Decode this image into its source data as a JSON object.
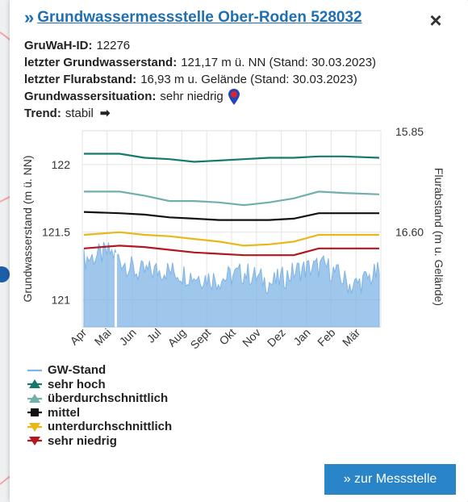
{
  "popup": {
    "title_prefix": "»",
    "title": "Grundwassermessstelle Ober-Roden 528032",
    "close_label": "×",
    "info": [
      {
        "label": "GruWaH-ID:",
        "value": "12276"
      },
      {
        "label": "letzter Grundwasserstand:",
        "value": "121,17 m ü. NN (Stand: 30.03.2023)"
      },
      {
        "label": "letzter Flurabstand:",
        "value": "16,93 m u. Gelände (Stand: 30.03.2023)"
      },
      {
        "label": "Grundwassersituation:",
        "value": "sehr niedrig"
      },
      {
        "label": "Trend:",
        "value": "stabil"
      }
    ],
    "trend_arrow": "➡",
    "button_label": "» zur Messstelle"
  },
  "icons": {
    "situation": "location-pin-icon",
    "trend": "arrow-right-icon",
    "close": "close-icon"
  },
  "colors": {
    "gw_stand": "#7fb4e6",
    "sehr_hoch": "#157a6e",
    "ueberdurchschnittlich": "#6fb0ad",
    "mittel": "#111111",
    "unterdurchschnittlich": "#e8b81a",
    "sehr_niedrig": "#b3171f",
    "link": "#1f6fb2",
    "button": "#2a85c8"
  },
  "chart_data": {
    "type": "area",
    "ylabel": "Grundwasserstand (m ü. NN)",
    "ylabel_right": "Flurabstand (m u. Gelände)",
    "y_ticks": [
      "122",
      "121.5",
      "121"
    ],
    "y_ticks_right": [
      "15.85",
      "16.60"
    ],
    "ylim": [
      120.8,
      122.25
    ],
    "categories": [
      "Apr",
      "Mai",
      "Jun",
      "Jul",
      "Aug",
      "Sept",
      "Okt",
      "Nov",
      "Dez",
      "Jan",
      "Feb",
      "Mär"
    ],
    "grid": true,
    "series": [
      {
        "name": "sehr hoch",
        "values": [
          122.08,
          122.08,
          122.05,
          122.04,
          122.02,
          122.03,
          122.04,
          122.05,
          122.05,
          122.06,
          122.06,
          122.05
        ]
      },
      {
        "name": "überdurchschnittlich",
        "values": [
          121.8,
          121.8,
          121.77,
          121.73,
          121.73,
          121.72,
          121.7,
          121.72,
          121.75,
          121.8,
          121.79,
          121.78
        ]
      },
      {
        "name": "mittel",
        "values": [
          121.65,
          121.64,
          121.63,
          121.61,
          121.6,
          121.59,
          121.59,
          121.59,
          121.6,
          121.64,
          121.64,
          121.64
        ]
      },
      {
        "name": "unterdurchschnittlich",
        "values": [
          121.48,
          121.5,
          121.48,
          121.47,
          121.45,
          121.43,
          121.4,
          121.41,
          121.43,
          121.48,
          121.48,
          121.48
        ]
      },
      {
        "name": "sehr niedrig",
        "values": [
          121.38,
          121.4,
          121.39,
          121.37,
          121.35,
          121.34,
          121.33,
          121.33,
          121.33,
          121.38,
          121.38,
          121.38
        ]
      },
      {
        "name": "GW-Stand",
        "values": [
          121.3,
          121.35,
          121.2,
          121.22,
          121.18,
          121.15,
          121.2,
          121.12,
          121.22,
          121.25,
          121.1,
          121.2
        ]
      }
    ]
  },
  "legend": [
    {
      "key": "gw_stand",
      "label": "GW-Stand",
      "marker": "line"
    },
    {
      "key": "sehr_hoch",
      "label": "sehr hoch",
      "marker": "up"
    },
    {
      "key": "ueberdurchschnittlich",
      "label": "überdurchschnittlich",
      "marker": "up"
    },
    {
      "key": "mittel",
      "label": "mittel",
      "marker": "square"
    },
    {
      "key": "unterdurchschnittlich",
      "label": "unterdurchschnittlich",
      "marker": "down"
    },
    {
      "key": "sehr_niedrig",
      "label": "sehr niedrig",
      "marker": "down"
    }
  ]
}
